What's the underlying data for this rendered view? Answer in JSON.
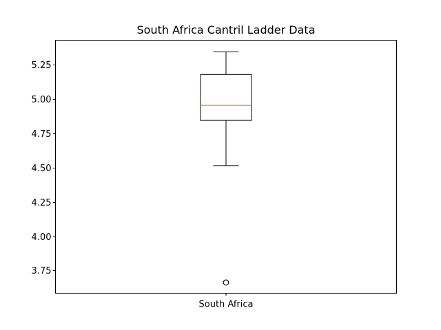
{
  "chart_data": {
    "type": "box",
    "title": "South Africa Cantril Ladder Data",
    "xlabel": "",
    "ylabel": "",
    "categories": [
      "South Africa"
    ],
    "ylim": [
      3.584,
      5.43
    ],
    "yticks": [
      3.75,
      4.0,
      4.25,
      4.5,
      4.75,
      5.0,
      5.25
    ],
    "ytick_labels": [
      "3.75",
      "4.00",
      "4.25",
      "4.50",
      "4.75",
      "5.00",
      "5.25"
    ],
    "grid": false,
    "boxes": [
      {
        "category": "South Africa",
        "whisker_low": 4.515,
        "q1": 4.845,
        "median": 4.955,
        "q3": 5.18,
        "whisker_high": 5.345,
        "outliers": [
          3.662
        ]
      }
    ],
    "colors": {
      "box": "#000000",
      "median": "#ff7f0e",
      "axes": "#000000"
    }
  }
}
